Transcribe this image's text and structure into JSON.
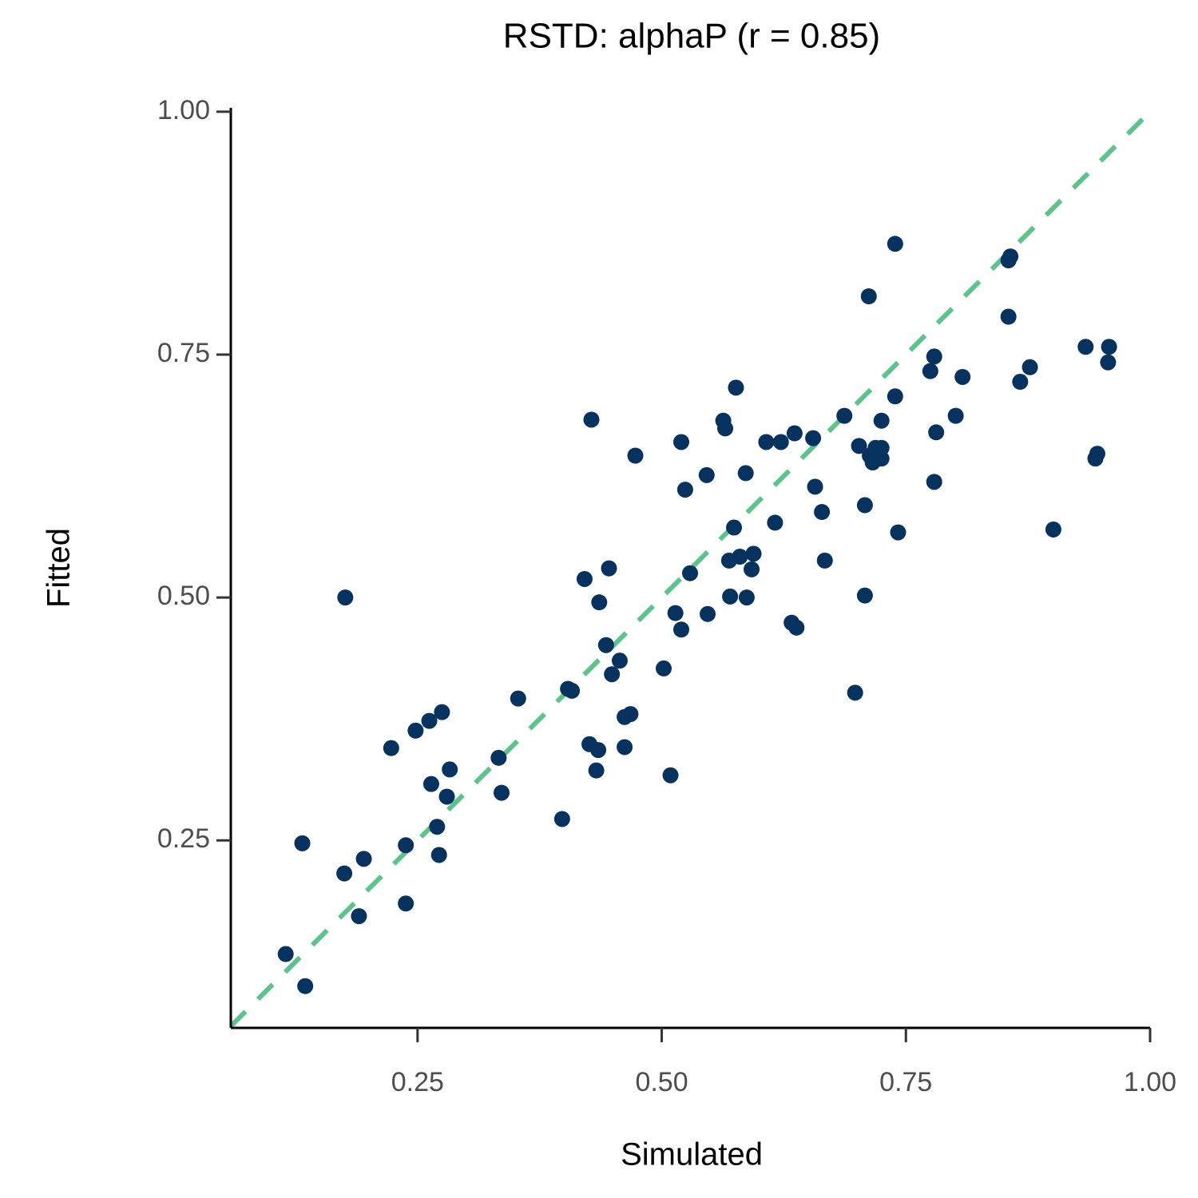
{
  "chart_data": {
    "type": "scatter",
    "title": "RSTD: alphaP (r = 0.85)",
    "x_label": "Simulated",
    "y_label": "Fitted",
    "color": "#06325f",
    "reference_line_color": "#5bc48a",
    "xlim": [
      0.0588,
      1.0
    ],
    "ylim": [
      0.057,
      1.004
    ],
    "xticks": [
      {
        "value": 0.25,
        "label": "0.25"
      },
      {
        "value": 0.5,
        "label": "0.50"
      },
      {
        "value": 0.75,
        "label": "0.75"
      },
      {
        "value": 1.0,
        "label": "1.00"
      }
    ],
    "yticks": [
      {
        "value": 0.25,
        "label": "0.25"
      },
      {
        "value": 0.5,
        "label": "0.50"
      },
      {
        "value": 0.75,
        "label": "0.75"
      },
      {
        "value": 1.0,
        "label": "1.00"
      }
    ],
    "x": [
      0.115,
      0.135,
      0.132,
      0.176,
      0.175,
      0.195,
      0.19,
      0.223,
      0.238,
      0.238,
      0.248,
      0.262,
      0.275,
      0.264,
      0.283,
      0.28,
      0.27,
      0.272,
      0.333,
      0.336,
      0.353,
      0.398,
      0.404,
      0.408,
      0.428,
      0.421,
      0.446,
      0.436,
      0.443,
      0.457,
      0.449,
      0.426,
      0.435,
      0.433,
      0.462,
      0.468,
      0.462,
      0.473,
      0.502,
      0.509,
      0.514,
      0.52,
      0.52,
      0.524,
      0.529,
      0.546,
      0.547,
      0.563,
      0.565,
      0.576,
      0.574,
      0.569,
      0.58,
      0.594,
      0.592,
      0.57,
      0.587,
      0.586,
      0.607,
      0.622,
      0.636,
      0.655,
      0.616,
      0.657,
      0.664,
      0.667,
      0.633,
      0.638,
      0.687,
      0.702,
      0.712,
      0.708,
      0.708,
      0.698,
      0.713,
      0.716,
      0.719,
      0.725,
      0.725,
      0.725,
      0.739,
      0.739,
      0.742,
      0.775,
      0.779,
      0.781,
      0.779,
      0.801,
      0.808,
      0.855,
      0.855,
      0.857,
      0.867,
      0.877,
      0.901,
      0.934,
      0.946,
      0.944,
      0.958,
      0.957
    ],
    "values": [
      0.133,
      0.1,
      0.247,
      0.5,
      0.216,
      0.231,
      0.172,
      0.345,
      0.245,
      0.185,
      0.363,
      0.373,
      0.382,
      0.308,
      0.323,
      0.295,
      0.264,
      0.235,
      0.335,
      0.299,
      0.396,
      0.272,
      0.406,
      0.404,
      0.683,
      0.519,
      0.53,
      0.495,
      0.451,
      0.435,
      0.421,
      0.349,
      0.343,
      0.322,
      0.377,
      0.38,
      0.346,
      0.646,
      0.427,
      0.317,
      0.484,
      0.467,
      0.66,
      0.611,
      0.525,
      0.626,
      0.483,
      0.682,
      0.674,
      0.716,
      0.572,
      0.538,
      0.542,
      0.545,
      0.529,
      0.501,
      0.5,
      0.628,
      0.66,
      0.66,
      0.669,
      0.664,
      0.577,
      0.614,
      0.588,
      0.538,
      0.474,
      0.469,
      0.687,
      0.656,
      0.81,
      0.595,
      0.502,
      0.402,
      0.646,
      0.639,
      0.654,
      0.654,
      0.643,
      0.682,
      0.864,
      0.707,
      0.567,
      0.733,
      0.748,
      0.67,
      0.619,
      0.687,
      0.727,
      0.789,
      0.847,
      0.851,
      0.722,
      0.737,
      0.57,
      0.758,
      0.648,
      0.643,
      0.758,
      0.742
    ]
  }
}
